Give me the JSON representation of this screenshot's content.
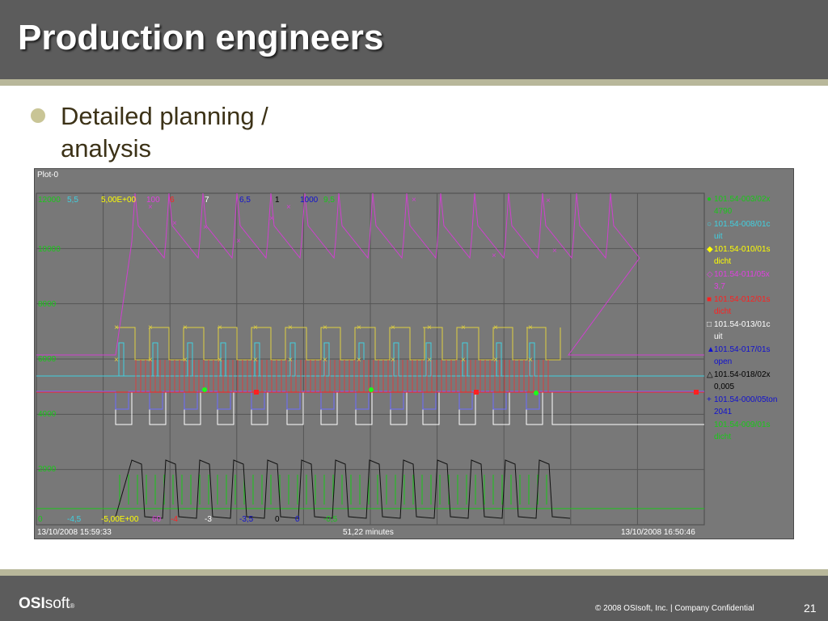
{
  "slide": {
    "title": "Production engineers",
    "bullet": "Detailed planning / analysis",
    "page_number": "21",
    "copyright": "© 2008 OSIsoft, Inc.  |  Company Confidential"
  },
  "logo": {
    "strong": "OSI",
    "light": "soft",
    "mark": "®"
  },
  "colors": {
    "header_bg": "#5c5c5c",
    "accent_stripe": "#b8b79a",
    "bullet": "#c9c596",
    "plot_bg": "#787878"
  },
  "plot": {
    "name": "Plot-0",
    "start_time": "13/10/2008 15:59:33",
    "duration": "51,22 minutes",
    "end_time": "13/10/2008 16:50:46",
    "y_ticks": [
      "12000",
      "10000",
      "8000",
      "6000",
      "4000",
      "2000",
      "0"
    ],
    "top_scale_labels": [
      {
        "text": "12000",
        "color": "#19c819"
      },
      {
        "text": "5,5",
        "color": "#40d0e0"
      },
      {
        "text": "5,00E+00",
        "color": "#ffff00"
      },
      {
        "text": "100",
        "color": "#e040e0"
      },
      {
        "text": "6",
        "color": "#ff2020"
      },
      {
        "text": "7",
        "color": "#ffffff"
      },
      {
        "text": "6,5",
        "color": "#1010d0"
      },
      {
        "text": "1",
        "color": "#000000"
      },
      {
        "text": "1000",
        "color": "#1010d0"
      },
      {
        "text": "9,5",
        "color": "#19c819"
      }
    ],
    "bottom_scale_labels": [
      {
        "text": "0",
        "color": "#19c819"
      },
      {
        "text": "-4,5",
        "color": "#40d0e0"
      },
      {
        "text": "-5,00E+00",
        "color": "#ffff00"
      },
      {
        "text": "60",
        "color": "#e040e0"
      },
      {
        "text": "-4",
        "color": "#ff2020"
      },
      {
        "text": "-3",
        "color": "#ffffff"
      },
      {
        "text": "-3,5",
        "color": "#1010d0"
      },
      {
        "text": "0",
        "color": "#000000"
      },
      {
        "text": "0",
        "color": "#1010d0"
      },
      {
        "text": "-0,5",
        "color": "#19c819"
      }
    ],
    "legend": [
      {
        "marker": "●",
        "tag": "101.54-003/02x",
        "value": "4790",
        "color": "#19c819"
      },
      {
        "marker": "○",
        "tag": "101.54-008/01c",
        "value": "uit",
        "color": "#40d0e0"
      },
      {
        "marker": "◆",
        "tag": "101.54-010/01s",
        "value": "dicht",
        "color": "#ffff00"
      },
      {
        "marker": "◇",
        "tag": "101.54-011/05x",
        "value": "3,7",
        "color": "#e040e0"
      },
      {
        "marker": "■",
        "tag": "101.54-012/01s",
        "value": "dicht",
        "color": "#ff2020"
      },
      {
        "marker": "□",
        "tag": "101.54-013/01c",
        "value": "uit",
        "color": "#ffffff"
      },
      {
        "marker": "▲",
        "tag": "101.54-017/01s",
        "value": "open",
        "color": "#1010d0"
      },
      {
        "marker": "△",
        "tag": "101.54-018/02x",
        "value": "0,005",
        "color": "#000000"
      },
      {
        "marker": "+",
        "tag": "101.54-000/05ton",
        "value": "2041",
        "color": "#1010d0"
      },
      {
        "marker": "",
        "tag": "101.54-009/01s",
        "value": "dicht",
        "color": "#19c819"
      }
    ]
  }
}
